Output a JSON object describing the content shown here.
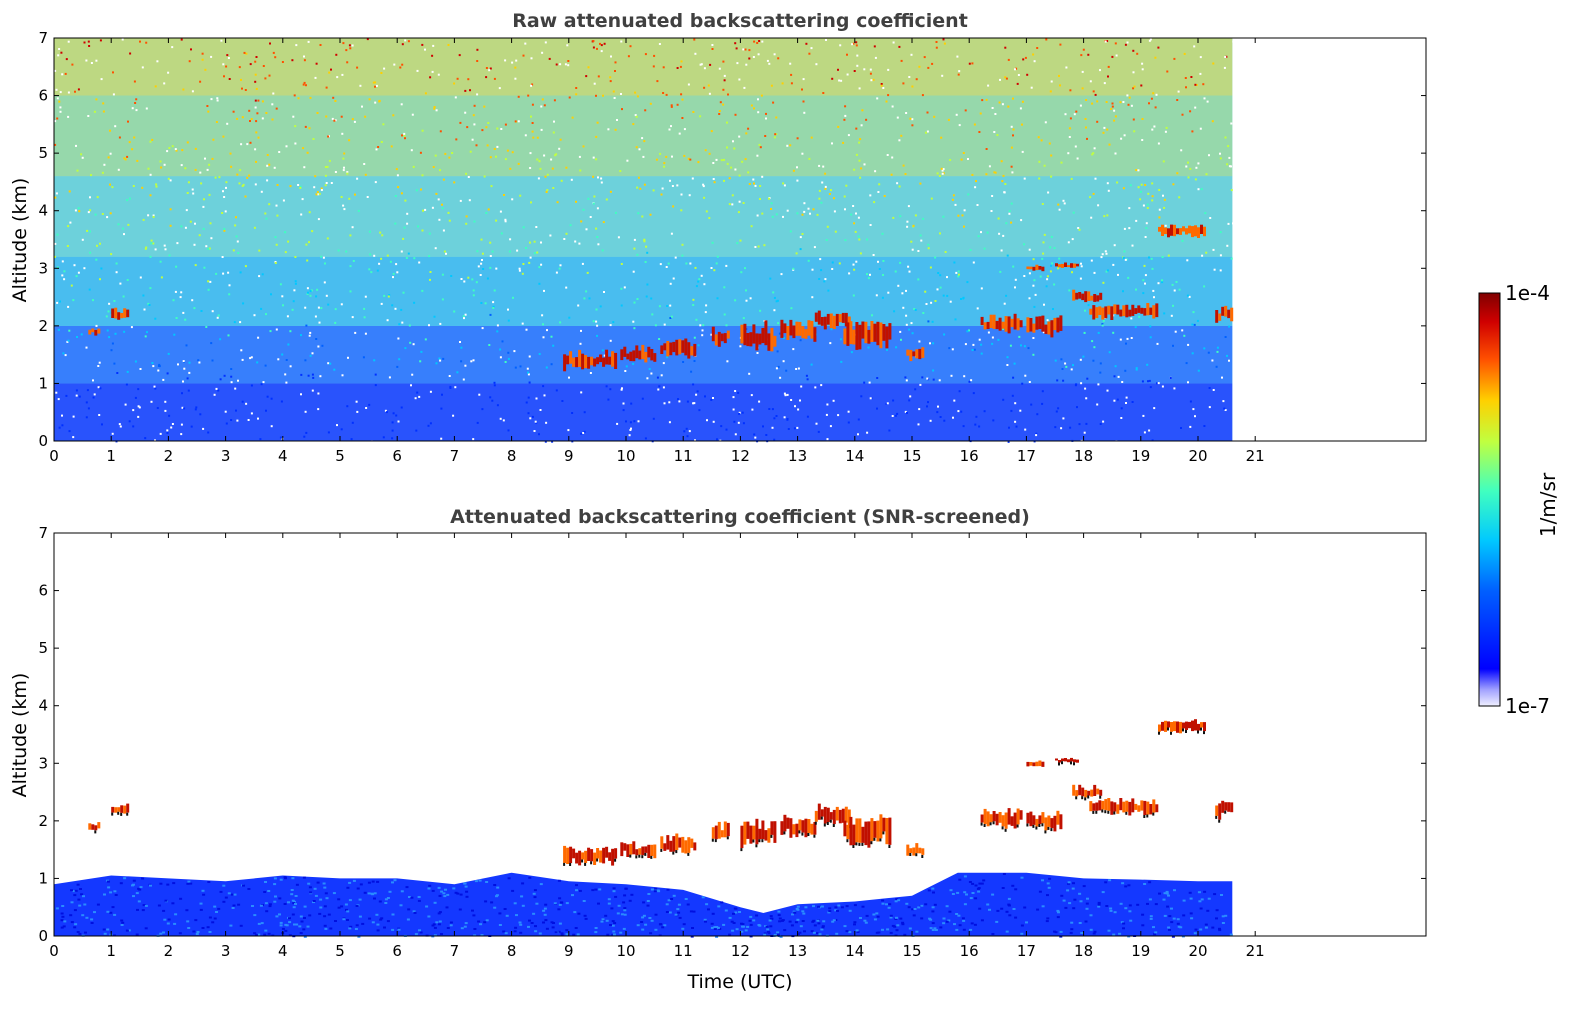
{
  "chart_data": [
    {
      "type": "heatmap",
      "title": "Raw attenuated backscattering coefficient",
      "xlabel": "",
      "ylabel": "Altitude (km)",
      "xlim": [
        0,
        24
      ],
      "ylim": [
        0,
        7
      ],
      "x_ticks": [
        "0",
        "1",
        "2",
        "3",
        "4",
        "5",
        "6",
        "7",
        "8",
        "9",
        "10",
        "11",
        "12",
        "13",
        "14",
        "15",
        "16",
        "17",
        "18",
        "19",
        "20",
        "21"
      ],
      "y_ticks": [
        "0",
        "1",
        "2",
        "3",
        "4",
        "5",
        "6",
        "7"
      ],
      "data_extent_hours": [
        0,
        20.6
      ],
      "background_noise": true,
      "cloud_layers": [
        {
          "t0": 0.6,
          "t1": 0.8,
          "alt": 1.9,
          "thick": 0.12
        },
        {
          "t0": 1.0,
          "t1": 1.3,
          "alt": 2.2,
          "thick": 0.2
        },
        {
          "t0": 8.9,
          "t1": 9.8,
          "alt": 1.4,
          "thick": 0.3
        },
        {
          "t0": 9.9,
          "t1": 10.5,
          "alt": 1.5,
          "thick": 0.25
        },
        {
          "t0": 10.6,
          "t1": 11.2,
          "alt": 1.6,
          "thick": 0.3
        },
        {
          "t0": 11.5,
          "t1": 11.8,
          "alt": 1.8,
          "thick": 0.3
        },
        {
          "t0": 12.0,
          "t1": 12.6,
          "alt": 1.8,
          "thick": 0.45
        },
        {
          "t0": 12.7,
          "t1": 13.3,
          "alt": 1.9,
          "thick": 0.35
        },
        {
          "t0": 13.3,
          "t1": 13.9,
          "alt": 2.1,
          "thick": 0.3
        },
        {
          "t0": 13.8,
          "t1": 14.6,
          "alt": 1.85,
          "thick": 0.5
        },
        {
          "t0": 14.9,
          "t1": 15.2,
          "alt": 1.5,
          "thick": 0.2
        },
        {
          "t0": 16.2,
          "t1": 16.9,
          "alt": 2.05,
          "thick": 0.3
        },
        {
          "t0": 17.0,
          "t1": 17.6,
          "alt": 2.0,
          "thick": 0.3
        },
        {
          "t0": 17.0,
          "t1": 17.3,
          "alt": 3.0,
          "thick": 0.1
        },
        {
          "t0": 17.5,
          "t1": 17.9,
          "alt": 3.05,
          "thick": 0.08
        },
        {
          "t0": 17.8,
          "t1": 18.3,
          "alt": 2.5,
          "thick": 0.2
        },
        {
          "t0": 18.1,
          "t1": 19.3,
          "alt": 2.25,
          "thick": 0.25
        },
        {
          "t0": 19.3,
          "t1": 20.1,
          "alt": 3.65,
          "thick": 0.2
        },
        {
          "t0": 20.3,
          "t1": 20.6,
          "alt": 2.2,
          "thick": 0.3
        }
      ]
    },
    {
      "type": "heatmap",
      "title": "Attenuated backscattering coefficient (SNR-screened)",
      "xlabel": "Time (UTC)",
      "ylabel": "Altitude (km)",
      "xlim": [
        0,
        24
      ],
      "ylim": [
        0,
        7
      ],
      "x_ticks": [
        "0",
        "1",
        "2",
        "3",
        "4",
        "5",
        "6",
        "7",
        "8",
        "9",
        "10",
        "11",
        "12",
        "13",
        "14",
        "15",
        "16",
        "17",
        "18",
        "19",
        "20",
        "21"
      ],
      "y_ticks": [
        "0",
        "1",
        "2",
        "3",
        "4",
        "5",
        "6",
        "7"
      ],
      "data_extent_hours": [
        0,
        20.6
      ],
      "background_noise": false,
      "boundary_layer_top_km": [
        [
          0,
          0.9
        ],
        [
          1,
          1.05
        ],
        [
          2,
          1.0
        ],
        [
          3,
          0.95
        ],
        [
          4,
          1.05
        ],
        [
          5,
          1.0
        ],
        [
          6,
          1.0
        ],
        [
          7,
          0.9
        ],
        [
          8,
          1.1
        ],
        [
          9,
          0.95
        ],
        [
          10,
          0.9
        ],
        [
          11,
          0.8
        ],
        [
          12,
          0.5
        ],
        [
          12.4,
          0.4
        ],
        [
          13,
          0.55
        ],
        [
          14,
          0.6
        ],
        [
          15,
          0.7
        ],
        [
          15.8,
          1.1
        ],
        [
          16,
          1.1
        ],
        [
          17,
          1.1
        ],
        [
          18,
          1.0
        ],
        [
          19,
          0.98
        ],
        [
          20,
          0.95
        ],
        [
          20.6,
          0.95
        ]
      ],
      "cloud_layers": [
        {
          "t0": 0.6,
          "t1": 0.8,
          "alt": 1.9,
          "thick": 0.12
        },
        {
          "t0": 1.0,
          "t1": 1.3,
          "alt": 2.2,
          "thick": 0.2
        },
        {
          "t0": 8.9,
          "t1": 9.8,
          "alt": 1.4,
          "thick": 0.3
        },
        {
          "t0": 9.9,
          "t1": 10.5,
          "alt": 1.5,
          "thick": 0.25
        },
        {
          "t0": 10.6,
          "t1": 11.2,
          "alt": 1.6,
          "thick": 0.3
        },
        {
          "t0": 11.5,
          "t1": 11.8,
          "alt": 1.8,
          "thick": 0.3
        },
        {
          "t0": 12.0,
          "t1": 12.6,
          "alt": 1.8,
          "thick": 0.45
        },
        {
          "t0": 12.7,
          "t1": 13.3,
          "alt": 1.9,
          "thick": 0.35
        },
        {
          "t0": 13.3,
          "t1": 13.9,
          "alt": 2.1,
          "thick": 0.3
        },
        {
          "t0": 13.8,
          "t1": 14.6,
          "alt": 1.85,
          "thick": 0.5
        },
        {
          "t0": 14.9,
          "t1": 15.2,
          "alt": 1.5,
          "thick": 0.2
        },
        {
          "t0": 16.2,
          "t1": 16.9,
          "alt": 2.05,
          "thick": 0.3
        },
        {
          "t0": 17.0,
          "t1": 17.6,
          "alt": 2.0,
          "thick": 0.3
        },
        {
          "t0": 17.0,
          "t1": 17.3,
          "alt": 3.0,
          "thick": 0.1
        },
        {
          "t0": 17.5,
          "t1": 17.9,
          "alt": 3.05,
          "thick": 0.08
        },
        {
          "t0": 17.8,
          "t1": 18.3,
          "alt": 2.5,
          "thick": 0.2
        },
        {
          "t0": 18.1,
          "t1": 19.3,
          "alt": 2.25,
          "thick": 0.25
        },
        {
          "t0": 19.3,
          "t1": 20.1,
          "alt": 3.65,
          "thick": 0.2
        },
        {
          "t0": 20.3,
          "t1": 20.6,
          "alt": 2.2,
          "thick": 0.3
        }
      ]
    }
  ],
  "colorbar": {
    "max_label": "1e-4",
    "min_label": "1e-7",
    "unit_label": "1/m/sr",
    "colors": [
      "#0000ff",
      "#0060ff",
      "#00c8ff",
      "#40ffc0",
      "#c0ff40",
      "#ffd000",
      "#ff5000",
      "#d00000",
      "#800000"
    ]
  }
}
